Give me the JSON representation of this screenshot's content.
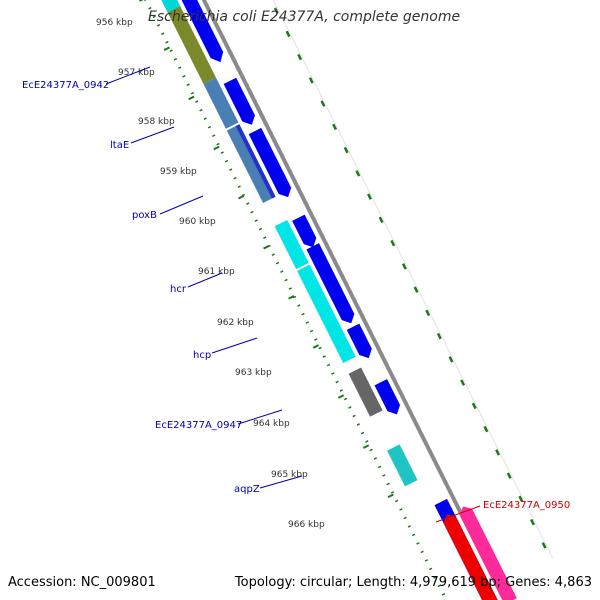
{
  "title": "Escherichia coli E24377A, complete genome",
  "footer": {
    "accession": "Accession: NC_009801",
    "summary": "Topology: circular; Length: 4,979,619 bp; Genes: 4,863"
  },
  "ticks": [
    "956 kbp",
    "957 kbp",
    "958 kbp",
    "959 kbp",
    "960 kbp",
    "961 kbp",
    "962 kbp",
    "963 kbp",
    "964 kbp",
    "965 kbp",
    "966 kbp"
  ],
  "gene_labels": [
    "EcE24377A_0942",
    "ltaE",
    "poxB",
    "hcr",
    "hcp",
    "EcE24377A_0947",
    "aqpZ",
    "EcE24377A_0950"
  ],
  "colors": {
    "forward_cds": "#0000ee",
    "reverse_cds_blue": "#4a7fb5",
    "reverse_cds_cyan": "#00e5e5",
    "reverse_cds_gray": "#666666",
    "reverse_cds_olive": "#7a8a2a",
    "highlight_red": "#ee0000",
    "highlight_pink": "#ff2a9a",
    "backbone": "#888888",
    "tick_green": "#1a7a1a",
    "label_blue": "#0000aa",
    "label_red": "#cc0000"
  }
}
